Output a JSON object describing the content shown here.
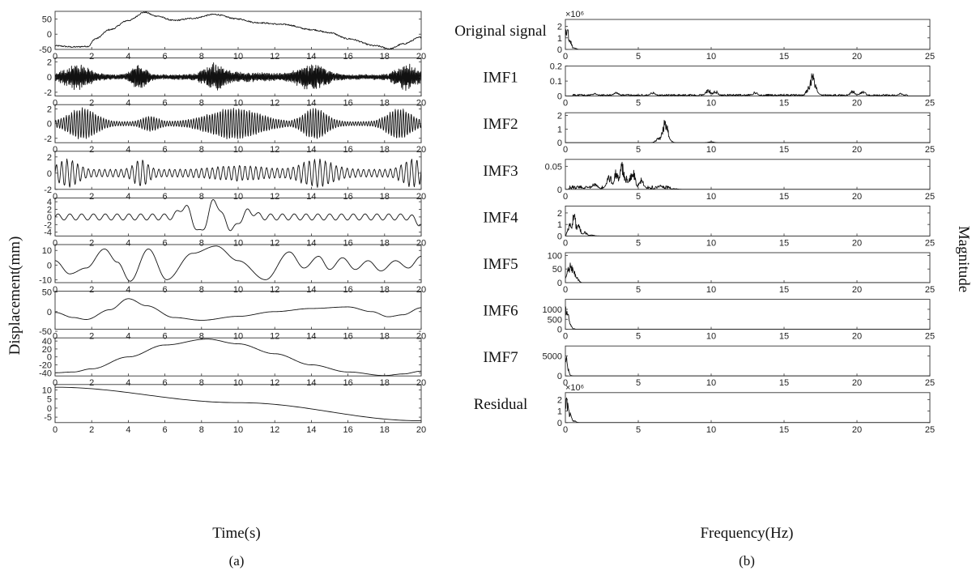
{
  "figure": {
    "left_ylabel": "Displacement(mm)",
    "right_ylabel": "Magnitude",
    "left_xlabel": "Time(s)",
    "right_xlabel": "Frequency(Hz)",
    "panel_a": "(a)",
    "panel_b": "(b)"
  },
  "chart_data": [
    {
      "type": "line",
      "panel": "(a)",
      "xlabel": "Time(s)",
      "ylabel": "Displacement(mm)",
      "xlim": [
        0,
        20
      ],
      "x_ticks": [
        "0",
        "2",
        "4",
        "6",
        "8",
        "10",
        "12",
        "14",
        "16",
        "18",
        "20"
      ],
      "series": [
        {
          "name": "Original signal",
          "ylim": [
            -50,
            75
          ],
          "y_ticks": [
            "50",
            "0",
            "-50"
          ],
          "envelope": [
            [
              0,
              -38
            ],
            [
              1,
              -42
            ],
            [
              1.8,
              -40
            ],
            [
              2.2,
              -15
            ],
            [
              3,
              15
            ],
            [
              4,
              45
            ],
            [
              4.9,
              72
            ],
            [
              5.5,
              60
            ],
            [
              6.5,
              45
            ],
            [
              7.5,
              52
            ],
            [
              8.7,
              65
            ],
            [
              10,
              50
            ],
            [
              11,
              38
            ],
            [
              12.5,
              32
            ],
            [
              14,
              15
            ],
            [
              15,
              5
            ],
            [
              16,
              -15
            ],
            [
              17.5,
              -38
            ],
            [
              18.3,
              -48
            ],
            [
              19,
              -32
            ],
            [
              20,
              -10
            ]
          ]
        },
        {
          "name": "IMF1",
          "ylim": [
            -2.5,
            2.5
          ],
          "y_ticks": [
            "2",
            "0",
            "-2"
          ],
          "peak_amplitude": 2
        },
        {
          "name": "IMF2",
          "ylim": [
            -2.6,
            2.6
          ],
          "y_ticks": [
            "2",
            "0",
            "-2"
          ],
          "peak_amplitude": 2.2
        },
        {
          "name": "IMF3",
          "ylim": [
            -2,
            2.7
          ],
          "y_ticks": [
            "2",
            "0",
            "-2"
          ],
          "peak_amplitude": 2
        },
        {
          "name": "IMF4",
          "ylim": [
            -5,
            5
          ],
          "y_ticks": [
            "4",
            "2",
            "0",
            "-2",
            "-4"
          ],
          "peak_amplitude": 4.5
        },
        {
          "name": "IMF5",
          "ylim": [
            -12,
            14
          ],
          "y_ticks": [
            "10",
            "0",
            "-10"
          ],
          "extrema": [
            [
              0,
              3
            ],
            [
              0.8,
              -6
            ],
            [
              1.7,
              -2
            ],
            [
              2.7,
              11
            ],
            [
              3.4,
              2
            ],
            [
              4.1,
              -11
            ],
            [
              5.1,
              11
            ],
            [
              6.1,
              -10
            ],
            [
              7.5,
              8
            ],
            [
              8.8,
              13
            ],
            [
              10,
              3
            ],
            [
              11.5,
              -10
            ],
            [
              12.8,
              9
            ],
            [
              13.6,
              -2
            ],
            [
              14.4,
              6
            ],
            [
              15,
              -3
            ],
            [
              15.7,
              5
            ],
            [
              16.4,
              -3
            ],
            [
              17.1,
              3
            ],
            [
              17.8,
              -4
            ],
            [
              18.6,
              3
            ],
            [
              19.3,
              -2
            ],
            [
              20,
              6
            ]
          ]
        },
        {
          "name": "IMF6",
          "ylim": [
            -45,
            52
          ],
          "y_ticks": [
            "50",
            "0",
            "-50"
          ],
          "extrema": [
            [
              0,
              -2
            ],
            [
              1,
              -15
            ],
            [
              1.7,
              -20
            ],
            [
              3,
              5
            ],
            [
              4,
              33
            ],
            [
              5,
              15
            ],
            [
              6.5,
              -15
            ],
            [
              8,
              -22
            ],
            [
              10,
              -12
            ],
            [
              12,
              0
            ],
            [
              14,
              8
            ],
            [
              16,
              12
            ],
            [
              17.3,
              0
            ],
            [
              18.2,
              -13
            ],
            [
              19,
              -8
            ],
            [
              20,
              10
            ]
          ]
        },
        {
          "name": "IMF7",
          "ylim": [
            -48,
            48
          ],
          "y_ticks": [
            "40",
            "20",
            "0",
            "-20",
            "-40"
          ],
          "extrema": [
            [
              0,
              -40
            ],
            [
              1,
              -38
            ],
            [
              2,
              -30
            ],
            [
              4,
              0
            ],
            [
              6,
              30
            ],
            [
              8.3,
              45
            ],
            [
              10,
              33
            ],
            [
              12,
              8
            ],
            [
              14,
              -20
            ],
            [
              16,
              -38
            ],
            [
              18,
              -47
            ],
            [
              19,
              -43
            ],
            [
              20,
              -36
            ]
          ]
        },
        {
          "name": "Residual",
          "ylim": [
            -8,
            13
          ],
          "y_ticks": [
            "10",
            "5",
            "0",
            "-5"
          ],
          "extrema": [
            [
              0,
              11.5
            ],
            [
              10,
              3
            ],
            [
              20,
              -7
            ]
          ]
        }
      ]
    },
    {
      "type": "line",
      "panel": "(b)",
      "xlabel": "Frequency(Hz)",
      "ylabel": "Magnitude",
      "xlim": [
        0,
        25
      ],
      "x_ticks": [
        "0",
        "5",
        "10",
        "15",
        "20",
        "25"
      ],
      "series": [
        {
          "name": "Original signal",
          "ylim": [
            0,
            2.6
          ],
          "y_ticks": [
            "2",
            "1",
            "0"
          ],
          "exponent": "×10⁶",
          "peaks": [
            [
              0.1,
              2.3
            ],
            [
              0.3,
              1.0
            ],
            [
              0.6,
              0.2
            ]
          ]
        },
        {
          "name": "IMF1",
          "ylim": [
            0,
            0.2
          ],
          "y_ticks": [
            "0.2",
            "0.1",
            "0"
          ],
          "peaks": [
            [
              2,
              0.02
            ],
            [
              3.5,
              0.03
            ],
            [
              6,
              0.03
            ],
            [
              9.8,
              0.05
            ],
            [
              10.3,
              0.04
            ],
            [
              13,
              0.03
            ],
            [
              16.7,
              0.07
            ],
            [
              16.95,
              0.17
            ],
            [
              17.2,
              0.06
            ],
            [
              19.7,
              0.04
            ],
            [
              20.4,
              0.04
            ],
            [
              23,
              0.02
            ]
          ]
        },
        {
          "name": "IMF2",
          "ylim": [
            0,
            2.2
          ],
          "y_ticks": [
            "2",
            "1",
            "0"
          ],
          "peaks": [
            [
              6.4,
              0.4
            ],
            [
              6.7,
              0.9
            ],
            [
              6.85,
              1.8
            ],
            [
              7.0,
              0.6
            ],
            [
              10,
              0.08
            ]
          ]
        },
        {
          "name": "IMF3",
          "ylim": [
            0,
            0.065
          ],
          "y_ticks": [
            "0.05",
            "0"
          ],
          "peaks": [
            [
              1,
              0.005
            ],
            [
              2,
              0.015
            ],
            [
              3,
              0.035
            ],
            [
              3.5,
              0.045
            ],
            [
              3.9,
              0.06
            ],
            [
              4.2,
              0.03
            ],
            [
              4.6,
              0.05
            ],
            [
              5.2,
              0.025
            ],
            [
              6.5,
              0.01
            ],
            [
              7.5,
              0.002
            ]
          ]
        },
        {
          "name": "IMF4",
          "ylim": [
            0,
            2.6
          ],
          "y_ticks": [
            "2",
            "1",
            "0"
          ],
          "peaks": [
            [
              0.3,
              1.4
            ],
            [
              0.6,
              2.2
            ],
            [
              0.9,
              1.4
            ],
            [
              1.3,
              0.4
            ],
            [
              1.8,
              0.1
            ]
          ]
        },
        {
          "name": "IMF5",
          "ylim": [
            0,
            110
          ],
          "y_ticks": [
            "100",
            "50",
            "0"
          ],
          "peaks": [
            [
              0.2,
              70
            ],
            [
              0.4,
              85
            ],
            [
              0.6,
              55
            ],
            [
              0.8,
              20
            ]
          ]
        },
        {
          "name": "IMF6",
          "ylim": [
            0,
            1500
          ],
          "y_ticks": [
            "1000",
            "500",
            "0"
          ],
          "peaks": [
            [
              0.05,
              1350
            ],
            [
              0.15,
              900
            ],
            [
              0.3,
              300
            ],
            [
              0.5,
              50
            ]
          ]
        },
        {
          "name": "IMF7",
          "ylim": [
            0,
            7500
          ],
          "y_ticks": [
            "5000",
            "0"
          ],
          "peaks": [
            [
              0.03,
              7000
            ],
            [
              0.1,
              2500
            ],
            [
              0.25,
              300
            ]
          ]
        },
        {
          "name": "Residual",
          "ylim": [
            0,
            2.6
          ],
          "y_ticks": [
            "2",
            "1",
            "0"
          ],
          "exponent": "×10⁶",
          "peaks": [
            [
              0.1,
              2.3
            ],
            [
              0.3,
              1.0
            ],
            [
              0.6,
              0.2
            ]
          ]
        }
      ]
    }
  ]
}
